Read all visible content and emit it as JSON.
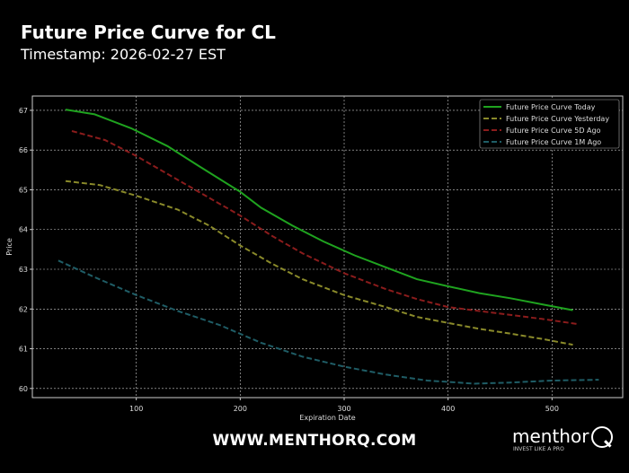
{
  "header": {
    "title": "Future Price Curve for CL",
    "subtitle": "Timestamp: 2026-02-27 EST"
  },
  "footer": {
    "site": "WWW.MENTHORQ.COM",
    "logo_word": "menthor",
    "logo_tagline": "INVEST LIKE A PRO"
  },
  "chart_data": {
    "type": "line",
    "xlabel": "Expiration Date",
    "ylabel": "Price",
    "xlim": [
      0,
      568
    ],
    "ylim": [
      59.77,
      67.36
    ],
    "xticks": [
      100,
      200,
      300,
      400,
      500
    ],
    "yticks": [
      60,
      61,
      62,
      63,
      64,
      65,
      66,
      67
    ],
    "grid": true,
    "legend_position": "top-right",
    "series": [
      {
        "name": "Future Price Curve Today",
        "color": "#1fa31f",
        "dash": false,
        "x": [
          32,
          60,
          95,
          130,
          160,
          200,
          220,
          250,
          280,
          310,
          340,
          370,
          400,
          430,
          460,
          490,
          520
        ],
        "y": [
          67.02,
          66.9,
          66.55,
          66.1,
          65.6,
          64.95,
          64.55,
          64.1,
          63.7,
          63.35,
          63.05,
          62.75,
          62.57,
          62.4,
          62.27,
          62.12,
          61.97
        ]
      },
      {
        "name": "Future Price Curve Yesterday",
        "color": "#8a8a2a",
        "dash": true,
        "x": [
          32,
          65,
          100,
          140,
          170,
          200,
          230,
          260,
          300,
          340,
          370,
          400,
          430,
          460,
          490,
          520
        ],
        "y": [
          65.22,
          65.12,
          64.85,
          64.5,
          64.1,
          63.6,
          63.15,
          62.75,
          62.35,
          62.05,
          61.8,
          61.65,
          61.5,
          61.38,
          61.25,
          61.1
        ]
      },
      {
        "name": "Future Price Curve 5D Ago",
        "color": "#8b1c1c",
        "dash": true,
        "x": [
          38,
          70,
          100,
          130,
          160,
          200,
          230,
          260,
          300,
          340,
          370,
          400,
          430,
          460,
          490,
          525
        ],
        "y": [
          66.48,
          66.25,
          65.85,
          65.4,
          64.95,
          64.35,
          63.85,
          63.4,
          62.9,
          62.5,
          62.25,
          62.05,
          61.95,
          61.85,
          61.75,
          61.62
        ]
      },
      {
        "name": "Future Price Curve 1M Ago",
        "color": "#1f5d66",
        "dash": true,
        "x": [
          25,
          60,
          100,
          140,
          180,
          220,
          260,
          300,
          340,
          380,
          410,
          425,
          460,
          500,
          545
        ],
        "y": [
          63.22,
          62.8,
          62.35,
          61.95,
          61.6,
          61.15,
          60.8,
          60.55,
          60.35,
          60.2,
          60.15,
          60.12,
          60.15,
          60.2,
          60.22
        ]
      }
    ]
  }
}
